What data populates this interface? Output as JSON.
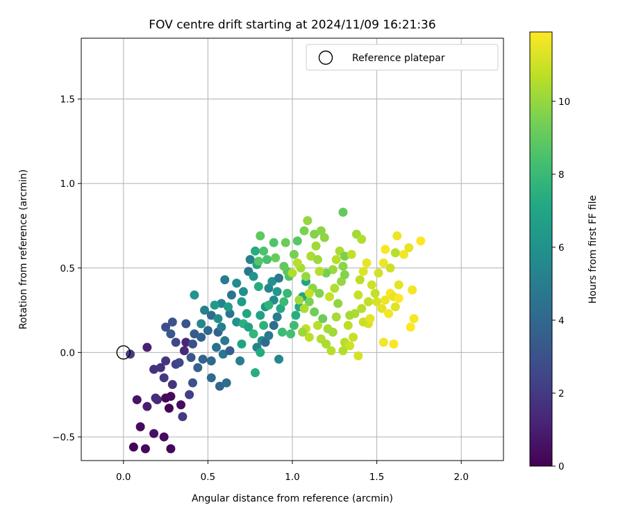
{
  "chart_data": {
    "type": "scatter",
    "title": "FOV centre drift starting at 2024/11/09 16:21:36",
    "xlabel": "Angular distance from reference (arcmin)",
    "ylabel": "Rotation from reference (arcmin)",
    "xlim": [
      -0.25,
      2.25
    ],
    "ylim": [
      -0.64,
      1.86
    ],
    "xticks": [
      0.0,
      0.5,
      1.0,
      1.5,
      2.0
    ],
    "xtick_labels": [
      "0.0",
      "0.5",
      "1.0",
      "1.5",
      "2.0"
    ],
    "yticks": [
      -0.5,
      0.0,
      0.5,
      1.0,
      1.5
    ],
    "ytick_labels": [
      "−0.5",
      "0.0",
      "0.5",
      "1.0",
      "1.5"
    ],
    "grid": true,
    "legend": {
      "placement": "top-right",
      "entries": [
        "Reference platepar"
      ]
    },
    "reference_point": {
      "x": 0.0,
      "y": 0.0,
      "marker": "open-circle"
    },
    "colorbar": {
      "label": "Hours from first FF file",
      "colormap": "viridis",
      "range": [
        0,
        11.9
      ],
      "ticks": [
        0,
        2,
        4,
        6,
        8,
        10
      ],
      "tick_labels": [
        "0",
        "2",
        "4",
        "6",
        "8",
        "10"
      ]
    },
    "series": [
      {
        "points": [
          [
            0.06,
            -0.56,
            0.1
          ],
          [
            0.13,
            -0.57,
            0.3
          ],
          [
            0.28,
            -0.57,
            0.2
          ],
          [
            0.24,
            -0.5,
            0.4
          ],
          [
            0.18,
            -0.48,
            0.5
          ],
          [
            0.1,
            -0.44,
            0.3
          ],
          [
            0.08,
            -0.28,
            0.6
          ],
          [
            0.25,
            -0.27,
            0.2
          ],
          [
            0.28,
            -0.26,
            0.3
          ],
          [
            0.27,
            -0.33,
            0.1
          ],
          [
            0.34,
            -0.31,
            0.4
          ],
          [
            0.14,
            -0.32,
            1.0
          ],
          [
            0.2,
            -0.28,
            1.3
          ],
          [
            0.19,
            -0.27,
            1.5
          ],
          [
            0.35,
            -0.38,
            2.0
          ],
          [
            0.39,
            -0.25,
            2.2
          ],
          [
            0.29,
            -0.19,
            1.8
          ],
          [
            0.24,
            -0.15,
            2.0
          ],
          [
            0.18,
            -0.1,
            1.6
          ],
          [
            0.22,
            -0.09,
            1.7
          ],
          [
            0.25,
            -0.05,
            1.9
          ],
          [
            0.14,
            0.03,
            1.1
          ],
          [
            0.04,
            -0.01,
            2.1
          ],
          [
            0.31,
            -0.07,
            2.4
          ],
          [
            0.33,
            -0.06,
            2.6
          ],
          [
            0.41,
            -0.18,
            3.0
          ],
          [
            0.36,
            0.01,
            1.4
          ],
          [
            0.37,
            0.06,
            1.3
          ],
          [
            0.31,
            0.06,
            2.5
          ],
          [
            0.41,
            0.05,
            2.9
          ],
          [
            0.25,
            0.15,
            2.8
          ],
          [
            0.29,
            0.18,
            3.0
          ],
          [
            0.28,
            0.11,
            3.3
          ],
          [
            0.37,
            0.17,
            3.1
          ],
          [
            0.42,
            0.11,
            3.4
          ],
          [
            0.46,
            0.09,
            3.6
          ],
          [
            0.4,
            -0.03,
            3.2
          ],
          [
            0.47,
            -0.04,
            3.8
          ],
          [
            0.44,
            -0.09,
            3.7
          ],
          [
            0.52,
            -0.15,
            4.1
          ],
          [
            0.57,
            -0.2,
            3.9
          ],
          [
            0.61,
            -0.18,
            4.3
          ],
          [
            0.52,
            -0.05,
            4.0
          ],
          [
            0.59,
            -0.01,
            4.6
          ],
          [
            0.55,
            0.03,
            4.4
          ],
          [
            0.63,
            0.01,
            3.5
          ],
          [
            0.69,
            -0.05,
            5.0
          ],
          [
            0.6,
            0.07,
            4.8
          ],
          [
            0.56,
            0.12,
            3.6
          ],
          [
            0.5,
            0.13,
            4.0
          ],
          [
            0.46,
            0.17,
            5.5
          ],
          [
            0.52,
            0.22,
            4.2
          ],
          [
            0.48,
            0.25,
            5.2
          ],
          [
            0.56,
            0.2,
            5.8
          ],
          [
            0.58,
            0.15,
            5.1
          ],
          [
            0.63,
            0.23,
            4.6
          ],
          [
            0.58,
            0.29,
            5.4
          ],
          [
            0.67,
            0.18,
            6.0
          ],
          [
            0.64,
            0.34,
            4.5
          ],
          [
            0.6,
            0.43,
            4.9
          ],
          [
            0.67,
            0.41,
            5.6
          ],
          [
            0.42,
            0.34,
            6.1
          ],
          [
            0.54,
            0.28,
            6.4
          ],
          [
            0.62,
            0.27,
            6.6
          ],
          [
            0.7,
            0.3,
            6.5
          ],
          [
            0.71,
            0.36,
            5.9
          ],
          [
            0.74,
            0.48,
            4.7
          ],
          [
            0.75,
            0.55,
            5.2
          ],
          [
            0.77,
            0.45,
            6.2
          ],
          [
            0.79,
            0.52,
            7.0
          ],
          [
            0.8,
            0.39,
            7.3
          ],
          [
            0.73,
            0.23,
            7.1
          ],
          [
            0.71,
            0.17,
            7.5
          ],
          [
            0.74,
            0.15,
            6.8
          ],
          [
            0.77,
            0.11,
            7.8
          ],
          [
            0.7,
            0.05,
            6.9
          ],
          [
            0.79,
            0.03,
            5.3
          ],
          [
            0.81,
            0.0,
            7.2
          ],
          [
            0.78,
            -0.12,
            7.4
          ],
          [
            0.82,
            0.07,
            5.7
          ],
          [
            0.84,
            0.06,
            4.1
          ],
          [
            0.86,
            0.1,
            4.8
          ],
          [
            0.89,
            0.16,
            4.2
          ],
          [
            0.91,
            0.21,
            5.0
          ],
          [
            0.92,
            -0.04,
            5.5
          ],
          [
            0.89,
            0.31,
            5.6
          ],
          [
            0.86,
            0.38,
            5.4
          ],
          [
            0.88,
            0.42,
            6.0
          ],
          [
            0.92,
            0.44,
            4.9
          ],
          [
            0.91,
            0.36,
            6.3
          ],
          [
            0.84,
            0.27,
            6.2
          ],
          [
            0.81,
            0.22,
            6.8
          ],
          [
            0.83,
            0.16,
            7.6
          ],
          [
            0.86,
            0.28,
            7.7
          ],
          [
            0.93,
            0.26,
            7.2
          ],
          [
            0.95,
            0.3,
            8.0
          ],
          [
            0.97,
            0.35,
            7.9
          ],
          [
            0.94,
            0.12,
            8.1
          ],
          [
            0.99,
            0.11,
            8.3
          ],
          [
            1.01,
            0.16,
            8.2
          ],
          [
            1.02,
            0.22,
            7.4
          ],
          [
            1.04,
            0.27,
            7.1
          ],
          [
            1.06,
            0.33,
            7.0
          ],
          [
            1.08,
            0.42,
            6.9
          ],
          [
            0.98,
            0.45,
            8.6
          ],
          [
            0.97,
            0.48,
            8.8
          ],
          [
            0.95,
            0.51,
            9.0
          ],
          [
            0.9,
            0.56,
            9.1
          ],
          [
            0.85,
            0.55,
            8.4
          ],
          [
            0.8,
            0.54,
            8.7
          ],
          [
            0.83,
            0.6,
            8.5
          ],
          [
            0.78,
            0.6,
            7.3
          ],
          [
            0.81,
            0.69,
            8.9
          ],
          [
            0.89,
            0.65,
            8.6
          ],
          [
            0.96,
            0.65,
            9.2
          ],
          [
            1.01,
            0.58,
            9.4
          ],
          [
            1.03,
            0.66,
            8.8
          ],
          [
            1.07,
            0.72,
            9.5
          ],
          [
            1.09,
            0.78,
            10.0
          ],
          [
            1.13,
            0.7,
            9.7
          ],
          [
            1.17,
            0.72,
            9.8
          ],
          [
            1.19,
            0.68,
            9.9
          ],
          [
            1.14,
            0.63,
            10.2
          ],
          [
            1.11,
            0.57,
            10.4
          ],
          [
            1.15,
            0.55,
            10.1
          ],
          [
            1.05,
            0.5,
            10.3
          ],
          [
            1.0,
            0.47,
            10.5
          ],
          [
            1.03,
            0.53,
            10.6
          ],
          [
            1.08,
            0.45,
            10.0
          ],
          [
            1.12,
            0.38,
            9.8
          ],
          [
            1.16,
            0.35,
            9.6
          ],
          [
            1.1,
            0.3,
            9.5
          ],
          [
            1.04,
            0.31,
            10.2
          ],
          [
            1.07,
            0.26,
            10.4
          ],
          [
            1.13,
            0.24,
            9.3
          ],
          [
            1.18,
            0.2,
            9.2
          ],
          [
            1.15,
            0.16,
            10.6
          ],
          [
            1.21,
            0.14,
            10.3
          ],
          [
            1.17,
            0.08,
            10.5
          ],
          [
            1.1,
            0.09,
            10.7
          ],
          [
            1.08,
            0.14,
            10.8
          ],
          [
            1.06,
            0.12,
            10.1
          ],
          [
            1.2,
            0.05,
            10.4
          ],
          [
            1.23,
            0.01,
            10.6
          ],
          [
            1.24,
            0.12,
            10.2
          ],
          [
            1.26,
            0.21,
            10.3
          ],
          [
            1.27,
            0.29,
            9.9
          ],
          [
            1.22,
            0.33,
            10.9
          ],
          [
            1.25,
            0.38,
            10.5
          ],
          [
            1.29,
            0.42,
            10.0
          ],
          [
            1.31,
            0.46,
            9.7
          ],
          [
            1.24,
            0.49,
            10.1
          ],
          [
            1.2,
            0.47,
            9.4
          ],
          [
            1.26,
            0.55,
            10.6
          ],
          [
            1.28,
            0.6,
            10.4
          ],
          [
            1.31,
            0.57,
            9.5
          ],
          [
            1.3,
            0.51,
            9.8
          ],
          [
            1.35,
            0.58,
            10.8
          ],
          [
            1.38,
            0.7,
            10.2
          ],
          [
            1.41,
            0.67,
            10.5
          ],
          [
            1.3,
            0.83,
            9.0
          ],
          [
            1.42,
            0.48,
            11.3
          ],
          [
            1.44,
            0.53,
            11.5
          ],
          [
            1.4,
            0.43,
            10.7
          ],
          [
            1.39,
            0.34,
            10.9
          ],
          [
            1.45,
            0.3,
            10.8
          ],
          [
            1.41,
            0.26,
            10.6
          ],
          [
            1.37,
            0.23,
            10.4
          ],
          [
            1.34,
            0.22,
            10.3
          ],
          [
            1.33,
            0.16,
            10.7
          ],
          [
            1.36,
            0.09,
            10.9
          ],
          [
            1.31,
            0.06,
            10.6
          ],
          [
            1.34,
            0.04,
            11.0
          ],
          [
            1.3,
            0.01,
            10.5
          ],
          [
            1.39,
            -0.02,
            11.1
          ],
          [
            1.47,
            0.4,
            11.0
          ],
          [
            1.49,
            0.35,
            10.8
          ],
          [
            1.5,
            0.3,
            11.2
          ],
          [
            1.53,
            0.26,
            11.4
          ],
          [
            1.55,
            0.31,
            11.6
          ],
          [
            1.58,
            0.35,
            11.8
          ],
          [
            1.6,
            0.33,
            11.5
          ],
          [
            1.57,
            0.23,
            11.7
          ],
          [
            1.61,
            0.27,
            11.3
          ],
          [
            1.63,
            0.32,
            11.9
          ],
          [
            1.63,
            0.4,
            11.4
          ],
          [
            1.58,
            0.5,
            11.0
          ],
          [
            1.54,
            0.53,
            11.6
          ],
          [
            1.55,
            0.61,
            11.8
          ],
          [
            1.61,
            0.59,
            10.6
          ],
          [
            1.66,
            0.58,
            11.7
          ],
          [
            1.69,
            0.62,
            11.5
          ],
          [
            1.76,
            0.66,
            11.9
          ],
          [
            1.62,
            0.69,
            11.6
          ],
          [
            1.71,
            0.37,
            11.7
          ],
          [
            1.72,
            0.2,
            11.8
          ],
          [
            1.7,
            0.15,
            11.9
          ],
          [
            1.54,
            0.06,
            11.7
          ],
          [
            1.6,
            0.05,
            11.8
          ],
          [
            1.45,
            0.17,
            11.2
          ],
          [
            1.42,
            0.18,
            10.9
          ],
          [
            1.51,
            0.47,
            11.1
          ],
          [
            1.46,
            0.2,
            11.4
          ],
          [
            1.1,
            0.35,
            10.8
          ],
          [
            1.16,
            0.48,
            10.6
          ]
        ]
      }
    ]
  }
}
